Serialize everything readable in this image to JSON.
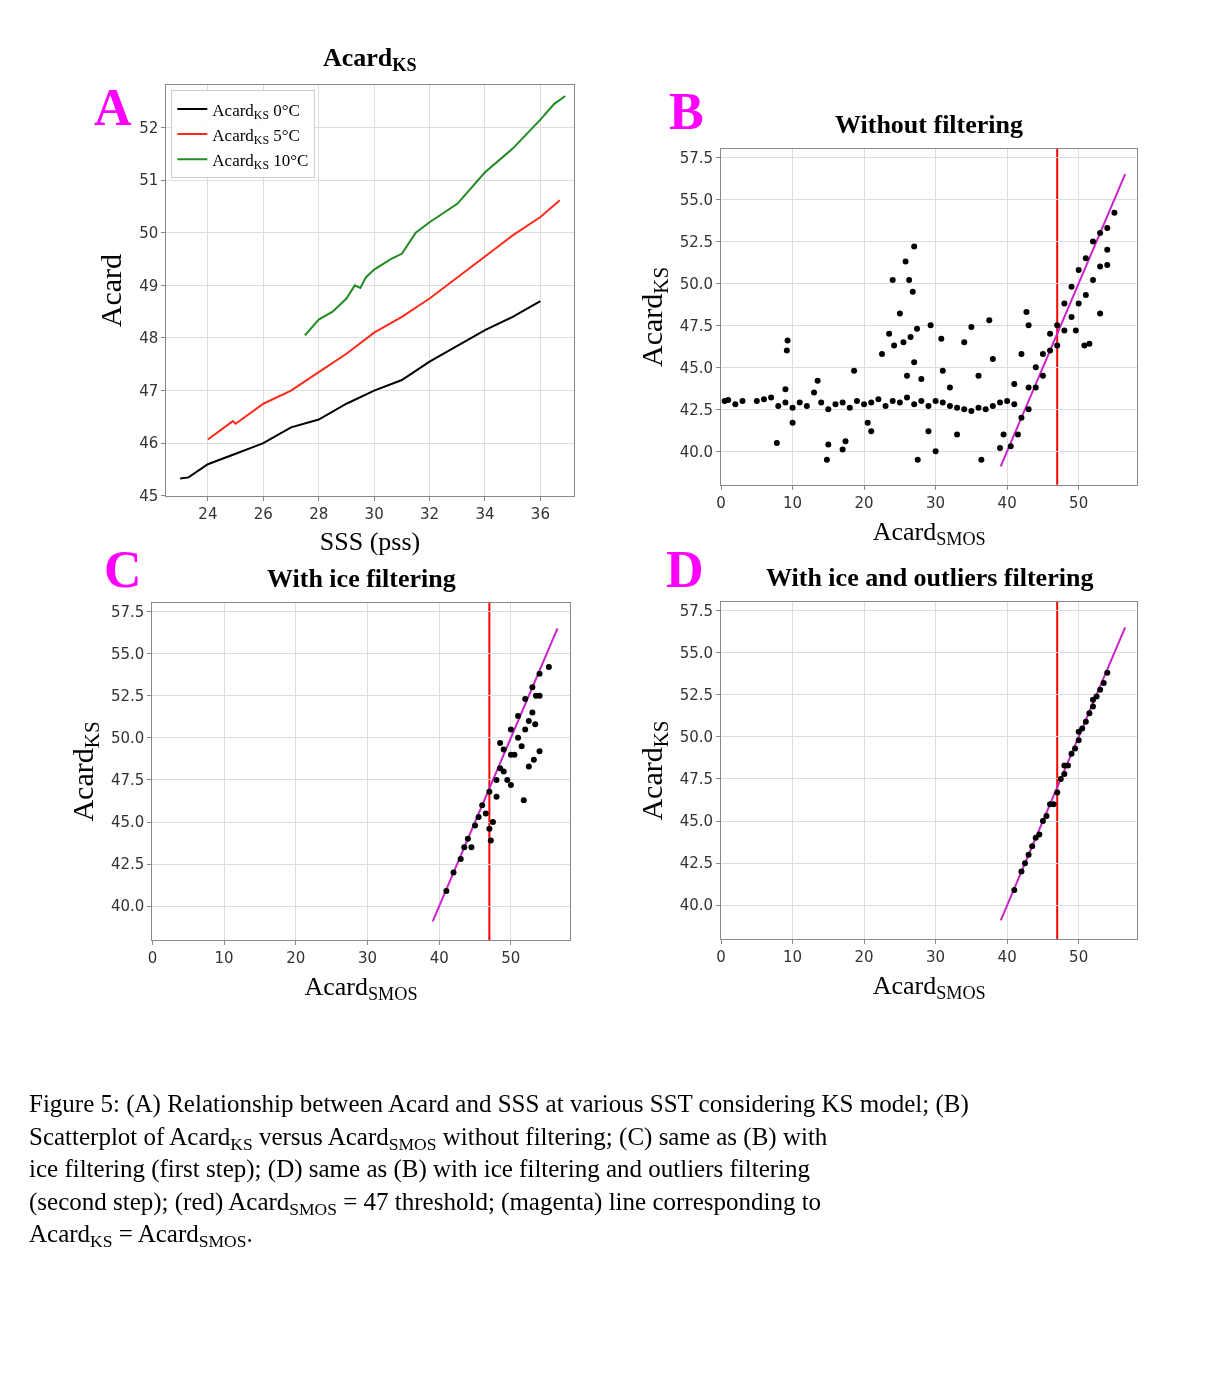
{
  "chart_data": [
    {
      "type": "line",
      "title": "Acard$_{KS}$",
      "xlabel": "SSS (pss)",
      "ylabel": "Acard",
      "xlim": [
        22.5,
        37.2
      ],
      "ylim": [
        45,
        52.8
      ],
      "xticks": [
        24,
        26,
        28,
        30,
        32,
        34,
        36
      ],
      "yticks": [
        45,
        46,
        47,
        48,
        49,
        50,
        51,
        52
      ],
      "grid": true,
      "legend": "top left",
      "annotations": [
        "A"
      ],
      "series": [
        {
          "name": "Acard$_{KS}$ 0°C",
          "color": "#000000",
          "x": [
            23,
            23.3,
            24,
            25,
            26,
            27,
            28,
            29,
            30,
            31,
            32,
            33,
            34,
            35,
            36
          ],
          "values": [
            45.33,
            45.35,
            45.6,
            45.8,
            46.0,
            46.3,
            46.45,
            46.75,
            47.0,
            47.2,
            47.55,
            47.85,
            48.15,
            48.4,
            48.7
          ]
        },
        {
          "name": "Acard$_{KS}$ 5°C",
          "color": "#ff2a1a",
          "x": [
            24,
            24.9,
            25,
            26,
            27,
            28,
            29,
            30,
            31,
            32,
            33,
            34,
            35,
            36,
            36.7
          ],
          "values": [
            46.07,
            46.42,
            46.37,
            46.75,
            47.0,
            47.35,
            47.7,
            48.1,
            48.4,
            48.75,
            49.15,
            49.55,
            49.95,
            50.3,
            50.62
          ]
        },
        {
          "name": "Acard$_{KS}$ 10°C",
          "color": "#228b22",
          "x": [
            27.5,
            28,
            28.5,
            29,
            29.3,
            29.5,
            29.7,
            30,
            30.6,
            31,
            31.5,
            32,
            33,
            34,
            35,
            36,
            36.5,
            36.9
          ],
          "values": [
            48.05,
            48.35,
            48.5,
            48.75,
            49.0,
            48.95,
            49.15,
            49.3,
            49.5,
            49.6,
            50.0,
            50.2,
            50.55,
            51.15,
            51.6,
            52.15,
            52.45,
            52.6
          ]
        }
      ]
    },
    {
      "type": "scatter",
      "title": "Without filtering",
      "xlabel": "Acard$_{SMOS}$",
      "ylabel": "Acard$_{KS}$",
      "xlim": [
        0,
        58.2
      ],
      "ylim": [
        38.0,
        58.0
      ],
      "xticks": [
        0,
        10,
        20,
        30,
        40,
        50
      ],
      "yticks": [
        {
          "value": 40,
          "label": "40.0"
        },
        {
          "value": 42.5,
          "label": "42.5"
        },
        {
          "value": 45,
          "label": "45.0"
        },
        {
          "value": 47.5,
          "label": "47.5"
        },
        {
          "value": 50,
          "label": "50.0"
        },
        {
          "value": 52.5,
          "label": "52.5"
        },
        {
          "value": 55,
          "label": "55.0"
        },
        {
          "value": 57.5,
          "label": "57.5"
        }
      ],
      "grid": true,
      "annotations": [
        "B"
      ],
      "ref_lines": [
        {
          "axis": "x",
          "value": 47,
          "color": "#ff0000"
        }
      ],
      "series": [
        {
          "color": "#000000",
          "marker": "circle",
          "x": [
            0.5,
            1,
            2,
            3,
            5,
            6,
            7,
            8,
            9,
            10,
            11,
            12,
            13,
            14,
            15,
            16,
            17,
            18,
            19,
            20,
            21,
            22,
            23,
            24,
            25,
            26,
            27,
            28,
            29,
            30,
            31,
            32,
            33,
            34,
            35,
            36,
            37,
            38,
            39,
            40,
            41,
            7.8,
            9.3,
            9.2,
            9,
            10,
            13.5,
            14.8,
            15,
            17,
            17.4,
            18.6,
            20.5,
            21,
            22.5,
            23.5,
            24,
            24.2,
            25,
            25.8,
            25.5,
            26,
            26.3,
            26.5,
            26.8,
            27,
            27,
            27.5,
            27.4,
            28,
            29.3,
            29,
            30,
            30.8,
            31,
            32,
            33,
            34,
            35,
            36,
            36.4,
            37.5,
            38,
            39,
            39.5,
            40.5,
            41,
            42,
            42.7,
            43,
            41.5,
            42,
            43,
            43,
            44,
            44,
            45,
            45,
            46,
            46,
            47,
            47,
            48,
            48,
            49,
            49,
            50,
            50,
            51,
            51,
            52,
            52,
            53,
            53,
            54,
            54,
            55,
            53,
            51.5,
            50.8,
            49.6,
            54
          ],
          "values": [
            43.0,
            43.05,
            42.8,
            43.0,
            43.0,
            43.1,
            43.2,
            42.7,
            42.9,
            42.6,
            42.9,
            42.7,
            43.5,
            42.9,
            42.5,
            42.8,
            42.9,
            42.6,
            43.0,
            42.8,
            42.9,
            43.1,
            42.7,
            43.0,
            42.9,
            43.2,
            42.8,
            43.0,
            42.7,
            43.0,
            42.9,
            42.7,
            42.6,
            42.5,
            42.4,
            42.6,
            42.5,
            42.7,
            42.9,
            43.0,
            42.8,
            40.5,
            46.6,
            46.0,
            43.7,
            41.7,
            44.2,
            39.5,
            40.4,
            40.1,
            40.6,
            44.8,
            41.7,
            41.2,
            45.8,
            47.0,
            50.2,
            46.3,
            48.2,
            51.3,
            46.5,
            44.5,
            50.2,
            46.8,
            49.5,
            52.2,
            45.3,
            39.5,
            47.3,
            44.3,
            47.5,
            41.2,
            40.0,
            46.7,
            44.8,
            43.8,
            41.0,
            46.5,
            47.4,
            44.5,
            39.5,
            47.8,
            45.5,
            40.2,
            41.0,
            40.3,
            44.0,
            45.8,
            48.3,
            47.5,
            41.0,
            42.0,
            42.5,
            43.8,
            43.8,
            45.0,
            44.5,
            45.8,
            46.0,
            47.0,
            46.3,
            47.5,
            47.2,
            48.8,
            48.0,
            49.8,
            48.8,
            50.8,
            49.3,
            51.5,
            50.2,
            52.5,
            51.0,
            53.0,
            52.0,
            53.3,
            54.2,
            48.2,
            46.4,
            46.3,
            47.2,
            51.1
          ]
        },
        {
          "type": "line",
          "color": "#cc22cc",
          "x": [
            39.1,
            56.5
          ],
          "values": [
            39.1,
            56.5
          ]
        }
      ]
    },
    {
      "type": "scatter",
      "title": "With ice filtering",
      "xlabel": "Acard$_{SMOS}$",
      "ylabel": "Acard$_{KS}$",
      "xlim": [
        0,
        58.2
      ],
      "ylim": [
        38.0,
        58.0
      ],
      "xticks": [
        0,
        10,
        20,
        30,
        40,
        50
      ],
      "yticks": [
        {
          "value": 40,
          "label": "40.0"
        },
        {
          "value": 42.5,
          "label": "42.5"
        },
        {
          "value": 45,
          "label": "45.0"
        },
        {
          "value": 47.5,
          "label": "47.5"
        },
        {
          "value": 50,
          "label": "50.0"
        },
        {
          "value": 52.5,
          "label": "52.5"
        },
        {
          "value": 55,
          "label": "55.0"
        },
        {
          "value": 57.5,
          "label": "57.5"
        }
      ],
      "grid": true,
      "annotations": [
        "C"
      ],
      "ref_lines": [
        {
          "axis": "x",
          "value": 47,
          "color": "#ff0000"
        }
      ],
      "series": [
        {
          "color": "#000000",
          "marker": "circle",
          "x": [
            41,
            42,
            43,
            43.5,
            44,
            44.5,
            45,
            45.5,
            46,
            46.5,
            47,
            47,
            47.2,
            47.5,
            48,
            48,
            48.5,
            49,
            49,
            49.5,
            50,
            50,
            50.5,
            51,
            51,
            51.5,
            52,
            52,
            52.5,
            53,
            53,
            53.5,
            54,
            54,
            55.3,
            48.5,
            51.8,
            50,
            52.5,
            53.2,
            53.4,
            54
          ],
          "values": [
            40.9,
            42.0,
            42.8,
            43.5,
            44.0,
            43.5,
            44.8,
            45.3,
            46.0,
            45.5,
            46.8,
            44.6,
            43.9,
            45.0,
            47.5,
            46.5,
            48.2,
            48.0,
            49.3,
            47.5,
            49.0,
            50.5,
            49.0,
            50.0,
            51.3,
            49.5,
            50.5,
            52.3,
            51.0,
            51.5,
            53.0,
            52.5,
            52.5,
            53.8,
            54.2,
            49.7,
            46.3,
            47.2,
            48.3,
            48.7,
            50.8,
            49.2
          ]
        },
        {
          "type": "line",
          "color": "#cc22cc",
          "x": [
            39.1,
            56.5
          ],
          "values": [
            39.1,
            56.5
          ]
        }
      ]
    },
    {
      "type": "scatter",
      "title": "With ice and outliers filtering",
      "xlabel": "Acard$_{SMOS}$",
      "ylabel": "Acard$_{KS}$",
      "xlim": [
        0,
        58.2
      ],
      "ylim": [
        38.0,
        58.0
      ],
      "xticks": [
        0,
        10,
        20,
        30,
        40,
        50
      ],
      "yticks": [
        {
          "value": 40,
          "label": "40.0"
        },
        {
          "value": 42.5,
          "label": "42.5"
        },
        {
          "value": 45,
          "label": "45.0"
        },
        {
          "value": 47.5,
          "label": "47.5"
        },
        {
          "value": 50,
          "label": "50.0"
        },
        {
          "value": 52.5,
          "label": "52.5"
        },
        {
          "value": 55,
          "label": "55.0"
        },
        {
          "value": 57.5,
          "label": "57.5"
        }
      ],
      "grid": true,
      "annotations": [
        "D",
        "Figure 5: (A) Relationship between Acard and SSS at various SST considering KS model; (B) Scatterplot of Acard$_{KS}$ versus Acard$_{SMOS}$ without filtering; (C) same as (B) with ice filtering (first step); (D) same as (B) with ice filtering and outliers filtering (second step); (red) Acard$_{SMOS}$ = 47 threshold; (magenta) line corresponding to Acard$_{KS}$ = Acard$_{SMOS}$."
      ],
      "ref_lines": [
        {
          "axis": "x",
          "value": 47,
          "color": "#ff0000"
        }
      ],
      "series": [
        {
          "color": "#000000",
          "marker": "circle",
          "x": [
            41,
            42,
            42.5,
            43,
            43.5,
            44,
            45,
            45.5,
            46,
            47,
            47.5,
            48,
            48.5,
            49,
            49.5,
            50,
            50.5,
            51,
            51.5,
            52,
            52.5,
            53,
            53.5,
            54,
            48,
            50,
            52,
            46.5,
            44.5
          ],
          "values": [
            40.9,
            42.0,
            42.5,
            43.0,
            43.5,
            44.0,
            45.0,
            45.3,
            46.0,
            46.7,
            47.5,
            47.8,
            48.3,
            49.0,
            49.3,
            49.8,
            50.5,
            50.9,
            51.4,
            51.8,
            52.4,
            52.8,
            53.2,
            53.8,
            48.3,
            50.3,
            52.2,
            46.0,
            44.2
          ]
        },
        {
          "type": "line",
          "color": "#cc22cc",
          "x": [
            39.1,
            56.5
          ],
          "values": [
            39.1,
            56.5
          ]
        }
      ]
    }
  ]
}
